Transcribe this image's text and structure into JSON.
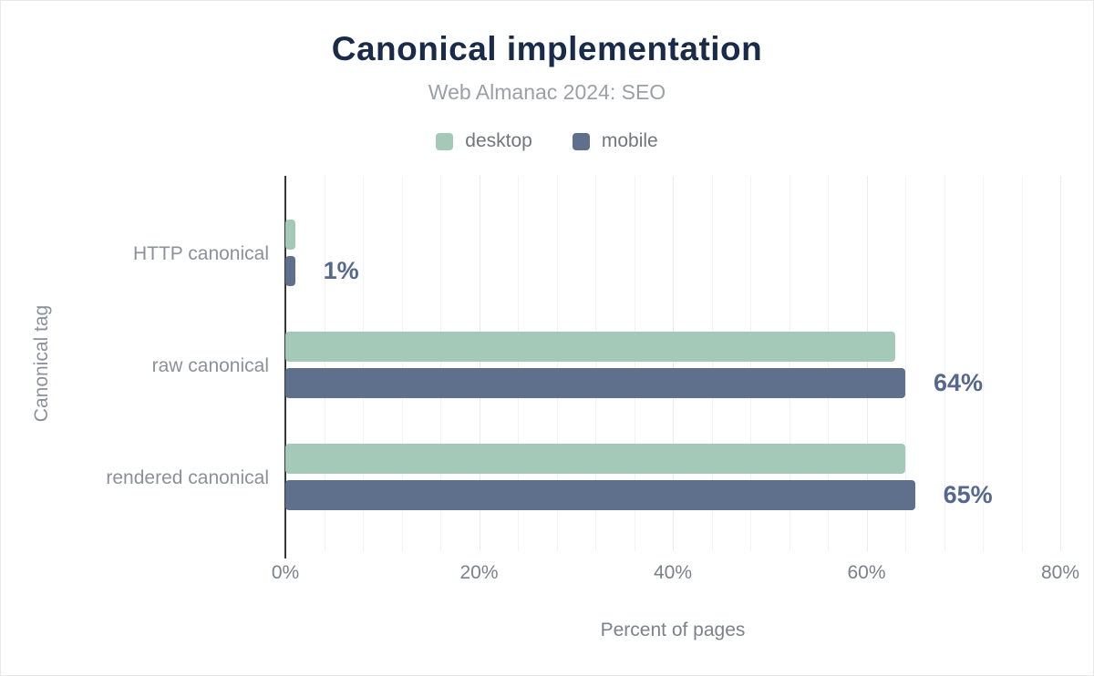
{
  "title": "Canonical implementation",
  "subtitle": "Web Almanac 2024: SEO",
  "legend": {
    "items": [
      {
        "label": "desktop",
        "color": "#a4c9b8"
      },
      {
        "label": "mobile",
        "color": "#5f708c"
      }
    ]
  },
  "chart_data": {
    "type": "bar",
    "orientation": "horizontal",
    "title": "Canonical implementation",
    "subtitle": "Web Almanac 2024: SEO",
    "categories": [
      "HTTP canonical",
      "raw canonical",
      "rendered canonical"
    ],
    "series": [
      {
        "name": "desktop",
        "color": "#a4c9b8",
        "values": [
          1,
          63,
          64
        ]
      },
      {
        "name": "mobile",
        "color": "#5f708c",
        "values": [
          1,
          64,
          65
        ]
      }
    ],
    "data_labels": [
      "1%",
      "64%",
      "65%"
    ],
    "data_label_color": "#55688e",
    "xlabel": "Percent of pages",
    "ylabel": "Canonical tag",
    "x_ticks": [
      {
        "value": 0,
        "label": "0%"
      },
      {
        "value": 20,
        "label": "20%"
      },
      {
        "value": 40,
        "label": "40%"
      },
      {
        "value": 60,
        "label": "60%"
      },
      {
        "value": 80,
        "label": "80%"
      }
    ],
    "xlim": [
      0,
      82
    ],
    "grid": {
      "minor_step": 4,
      "major_step": 20,
      "visible": true
    },
    "legend_position": "top"
  },
  "colors": {
    "title": "#1a2b49",
    "subtitle": "#9aa0a7",
    "axis_line": "#333537",
    "tick_label": "#7b818c",
    "category_label": "#8b909a"
  }
}
